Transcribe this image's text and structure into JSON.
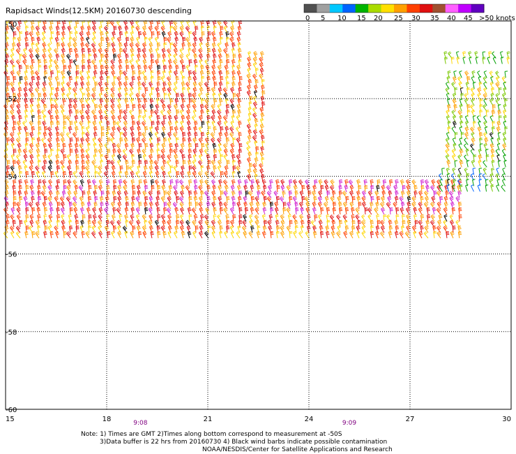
{
  "chart_data": {
    "type": "wind-barb map",
    "title": "Rapidsact Winds(12.5KM) 20160730 descending",
    "x_ticks": [
      "15",
      "18",
      "21",
      "24",
      "27",
      "30"
    ],
    "y_ticks": [
      "-50",
      "-52",
      "-54",
      "-56",
      "-58",
      "-60"
    ],
    "xlim": [
      15,
      30
    ],
    "ylim": [
      -60,
      -50
    ],
    "grid": true,
    "time_labels": [
      {
        "text": "9:08",
        "x": 19.0
      },
      {
        "text": "9:09",
        "x": 25.2
      }
    ],
    "colorbar": {
      "labels": [
        "0",
        "5",
        "10",
        "15",
        "20",
        "25",
        "30",
        "35",
        "40",
        "45",
        ">50 knots"
      ],
      "colors": [
        "#505050",
        "#a0a0a0",
        "#00c8ff",
        "#0064ff",
        "#00b400",
        "#aadc00",
        "#ffe000",
        "#ffa000",
        "#ff4000",
        "#e01010",
        "#a05030",
        "#ff60ff",
        "#c000ff",
        "#6000c0"
      ]
    },
    "swaths": [
      {
        "x0": 15.0,
        "x1": 22.2,
        "y0": -50.0,
        "y1": -54.1,
        "speed_range": [
          20,
          40
        ]
      },
      {
        "x0": 22.2,
        "x1": 22.75,
        "y0": -50.8,
        "y1": -54.1,
        "speed_range": [
          20,
          40
        ]
      },
      {
        "x0": 15.0,
        "x1": 28.7,
        "y0": -54.1,
        "y1": -55.0,
        "speed_range": [
          25,
          45
        ]
      },
      {
        "x0": 15.0,
        "x1": 28.7,
        "y0": -55.0,
        "y1": -55.7,
        "speed_range": [
          20,
          40
        ]
      },
      {
        "x0": 15.0,
        "x1": 28.7,
        "y0": -55.7,
        "y1": -55.75,
        "speed_range": [
          15,
          30
        ]
      },
      {
        "x0": 28.0,
        "x1": 30.0,
        "y0": -50.8,
        "y1": -51.1,
        "speed_range": [
          10,
          25
        ]
      },
      {
        "x0": 28.1,
        "x1": 30.0,
        "y0": -51.3,
        "y1": -53.8,
        "speed_range": [
          10,
          30
        ]
      },
      {
        "x0": 27.9,
        "x1": 30.0,
        "y0": -53.8,
        "y1": -54.4,
        "speed_range": [
          5,
          20
        ]
      }
    ],
    "notes": [
      "Note: 1) Times are GMT 2)Times along bottom correspond to measurement at -50S",
      "3)Data buffer is 22 hrs from 20160730 4) Black wind barbs indicate possible contamination",
      "NOAA/NESDIS/Center for Satellite Applications and Research"
    ]
  }
}
